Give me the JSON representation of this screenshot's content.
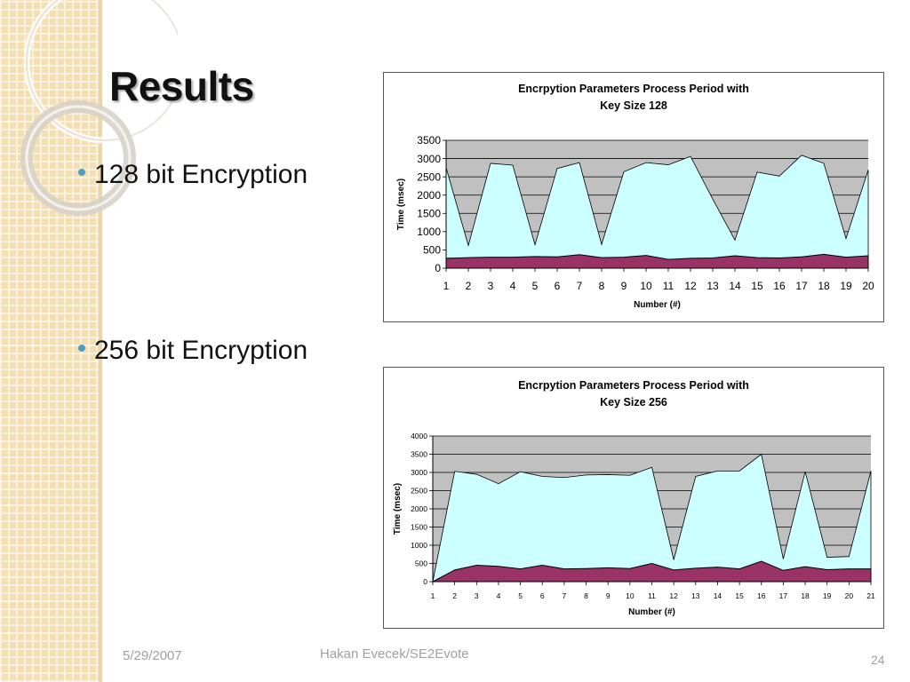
{
  "slide": {
    "title": "Results",
    "bullets": [
      "128 bit Encryption",
      "256 bit Encryption"
    ],
    "footer": {
      "date": "5/29/2007",
      "author": "Hakan Evecek/SE2Evote",
      "page": "24"
    }
  },
  "colors": {
    "plot_bg": "#c0c0c0",
    "upper_fill": "#ccffff",
    "lower_fill": "#993366",
    "bullet": "#4d9fc0"
  },
  "chart_data": [
    {
      "type": "area",
      "title": "Encrpytion Parameters Process Period with Key Size 128",
      "title_lines": [
        "Encrpytion Parameters Process Period with",
        "Key Size 128"
      ],
      "xlabel": "Number (#)",
      "ylabel": "Time (msec)",
      "ylim": [
        0,
        3500
      ],
      "yticks": [
        0,
        500,
        1000,
        1500,
        2000,
        2500,
        3000,
        3500
      ],
      "x": [
        1,
        2,
        3,
        4,
        5,
        6,
        7,
        8,
        9,
        10,
        11,
        12,
        13,
        14,
        15,
        16,
        17,
        18,
        19,
        20
      ],
      "grid": true,
      "series": [
        {
          "values": [
            2750,
            620,
            2870,
            2820,
            640,
            2730,
            2890,
            650,
            2640,
            2890,
            2830,
            3060,
            1890,
            770,
            2630,
            2520,
            3090,
            2870,
            810,
            2690
          ]
        },
        {
          "values": [
            270,
            290,
            300,
            300,
            320,
            310,
            370,
            290,
            300,
            350,
            240,
            270,
            280,
            340,
            290,
            280,
            310,
            380,
            300,
            340
          ]
        }
      ]
    },
    {
      "type": "area",
      "title": "Encrpytion Parameters Process Period with Key Size 256",
      "title_lines": [
        "Encrpytion Parameters Process Period with",
        "Key Size 256"
      ],
      "xlabel": "Number (#)",
      "ylabel": "Time (msec)",
      "ylim": [
        0,
        4000
      ],
      "yticks": [
        0,
        500,
        1000,
        1500,
        2000,
        2500,
        3000,
        3500,
        4000
      ],
      "x": [
        1,
        2,
        3,
        4,
        5,
        6,
        7,
        8,
        9,
        10,
        11,
        12,
        13,
        14,
        15,
        16,
        17,
        18,
        19,
        20,
        21
      ],
      "grid": true,
      "series": [
        {
          "values": [
            0,
            3030,
            2950,
            2690,
            3020,
            2890,
            2860,
            2930,
            2940,
            2920,
            3140,
            600,
            2890,
            3040,
            3040,
            3500,
            620,
            3020,
            670,
            690,
            3040
          ]
        },
        {
          "values": [
            0,
            320,
            450,
            420,
            350,
            450,
            350,
            360,
            380,
            360,
            500,
            320,
            370,
            400,
            350,
            560,
            310,
            410,
            330,
            350,
            350
          ]
        }
      ]
    }
  ]
}
